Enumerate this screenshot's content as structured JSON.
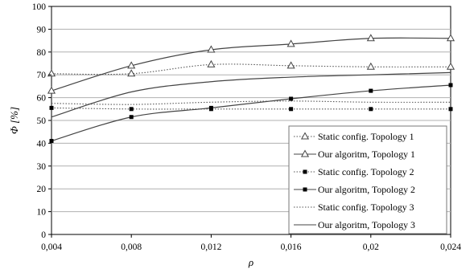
{
  "chart_data": {
    "type": "line",
    "xlabel": "ρ",
    "ylabel": "Φ [%]",
    "x": [
      0.004,
      0.008,
      0.012,
      0.016,
      0.02,
      0.024
    ],
    "x_tick_labels": [
      "0,004",
      "0,008",
      "0,012",
      "0,016",
      "0,02",
      "0,024"
    ],
    "xlim": [
      0.004,
      0.024
    ],
    "ylim": [
      0,
      100
    ],
    "y_ticks": [
      0,
      10,
      20,
      30,
      40,
      50,
      60,
      70,
      80,
      90,
      100
    ],
    "grid": "horizontal",
    "legend_position": "bottom-right",
    "series": [
      {
        "name": "Static config. Topology 1",
        "marker": "triangle",
        "line": "dotted",
        "values": [
          70.5,
          70.5,
          74.5,
          74,
          73.5,
          73.5
        ]
      },
      {
        "name": "Our algoritm, Topology 1",
        "marker": "triangle",
        "line": "solid",
        "values": [
          63,
          74,
          81,
          83.5,
          86,
          86
        ]
      },
      {
        "name": "Static config. Topology 2",
        "marker": "square",
        "line": "dotted",
        "values": [
          55.5,
          55,
          55,
          55,
          55,
          55
        ]
      },
      {
        "name": "Our algoritm, Topology 2",
        "marker": "square",
        "line": "solid",
        "values": [
          41,
          51.5,
          55.5,
          59.5,
          63,
          65.5
        ]
      },
      {
        "name": "Static config. Topology 3",
        "marker": "none",
        "line": "dotted",
        "values": [
          57.5,
          57,
          58,
          58.5,
          58,
          58
        ]
      },
      {
        "name": "Our algoritm, Topology 3",
        "marker": "none",
        "line": "solid",
        "values": [
          51.5,
          62.5,
          67,
          69,
          70,
          71
        ]
      }
    ]
  }
}
